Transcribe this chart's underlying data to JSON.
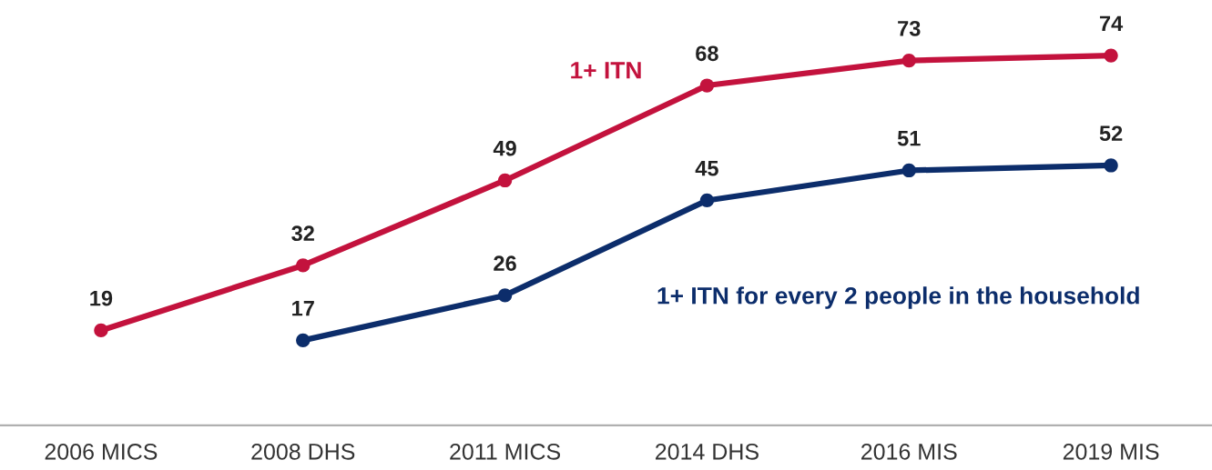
{
  "chart_data": {
    "type": "line",
    "categories": [
      "2006 MICS",
      "2008 DHS",
      "2011 MICS",
      "2014 DHS",
      "2016 MIS",
      "2019 MIS"
    ],
    "series": [
      {
        "name": "1+ ITN",
        "color": "#c3123d",
        "values": [
          19,
          32,
          49,
          68,
          73,
          74
        ]
      },
      {
        "name": "1+ ITN for every 2 people in the household",
        "color": "#0c2d6b",
        "values": [
          null,
          17,
          26,
          45,
          51,
          52
        ]
      }
    ],
    "data_labels": true,
    "marker": "circle",
    "line_style": "solid",
    "grid": false,
    "legend": false
  }
}
